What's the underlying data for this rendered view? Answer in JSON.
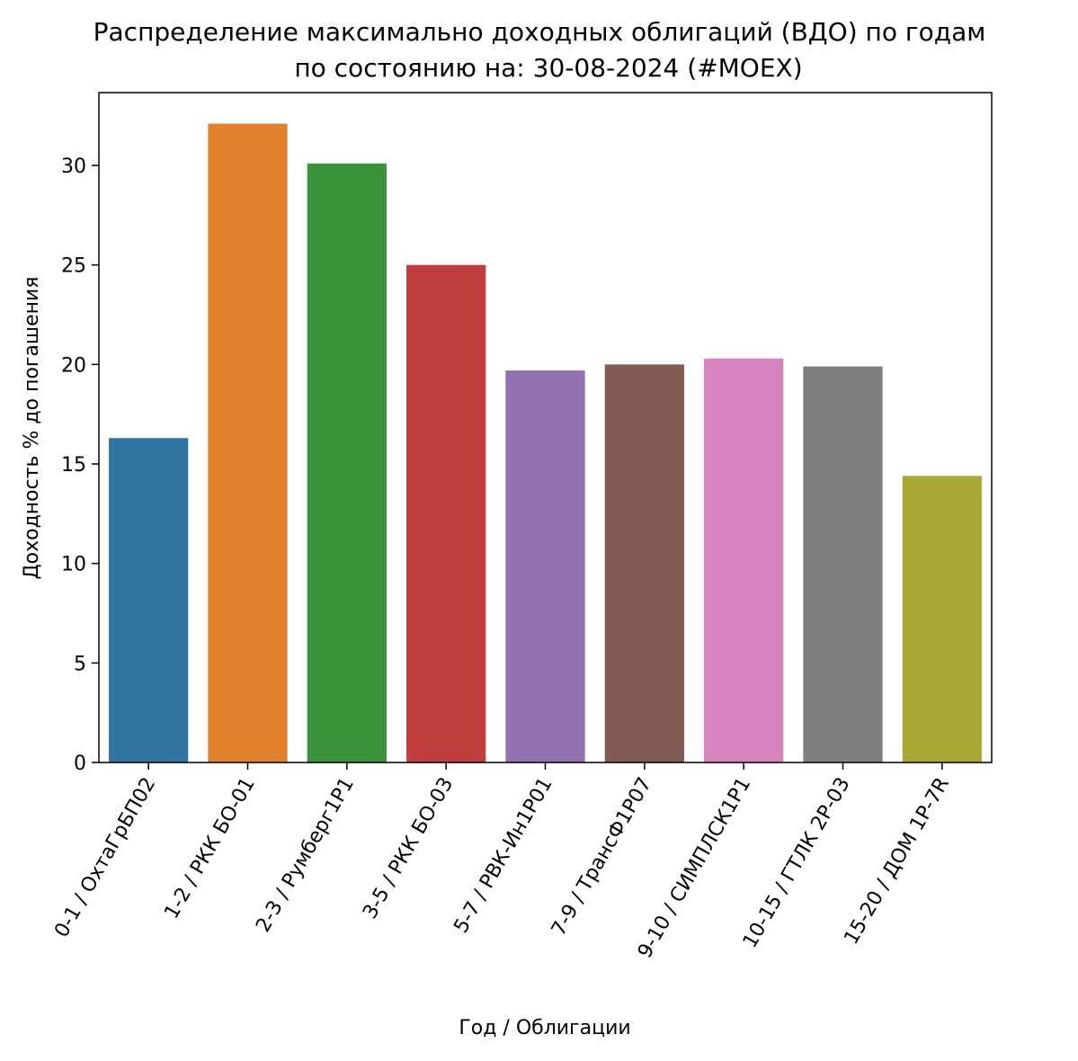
{
  "chart_data": {
    "type": "bar",
    "title": "Распределение максимально доходных облигаций (ВДО) по годам",
    "subtitle": "по состоянию на: 30-08-2024 (#MOEX)",
    "xlabel": "Год / Облигации",
    "ylabel": "Доходность % до погашения",
    "ylim": [
      0,
      33.66
    ],
    "yticks": [
      0,
      5,
      10,
      15,
      20,
      25,
      30
    ],
    "grid": false,
    "categories": [
      "0-1 / ОхтаГрБП02",
      "1-2 / РКК БО-01",
      "2-3 / Румберг1Р1",
      "3-5 / РКК БО-03",
      "5-7 / РВК-Ин1Р01",
      "7-9 / ТрансФ1Р07",
      "9-10 / СИМПЛСК1Р1",
      "10-15 / ГТЛК 2Р-03",
      "15-20 / ДОМ 1P-7R"
    ],
    "values": [
      16.3,
      32.1,
      30.1,
      25.0,
      19.7,
      20.0,
      20.3,
      19.9,
      14.4
    ],
    "colors": [
      "#3274a1",
      "#e1812c",
      "#3a923a",
      "#c03d3e",
      "#9372b2",
      "#845b53",
      "#d684bd",
      "#7f7f7f",
      "#a9aa35"
    ]
  }
}
